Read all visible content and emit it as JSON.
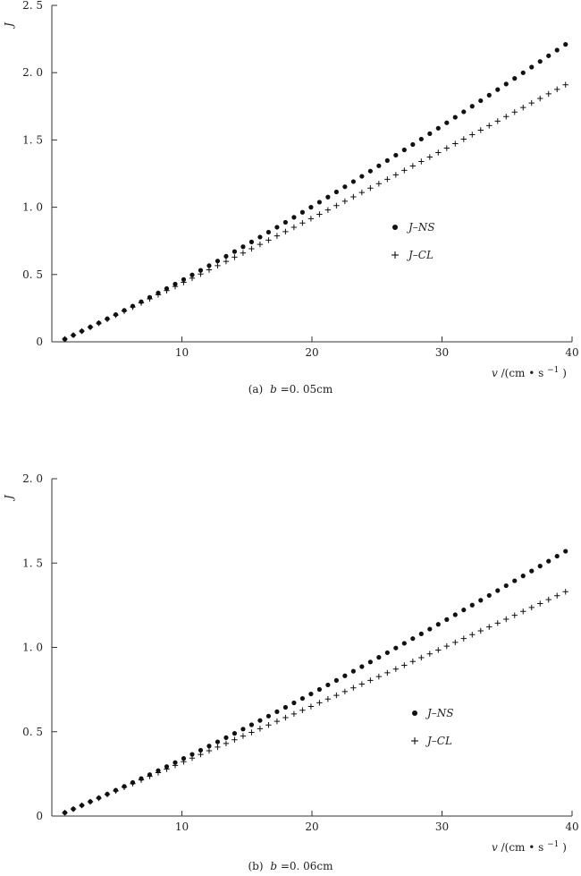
{
  "chart_data": [
    {
      "type": "scatter",
      "caption": {
        "prefix": "(a)",
        "var": "b",
        "rest": "=0. 05cm"
      },
      "xlabel": {
        "var": "v",
        "unit": "/(cm • s",
        "exp": "−1",
        "close": ")"
      },
      "ylabel": "J",
      "xlim": [
        0,
        40
      ],
      "ylim": [
        0,
        2.5
      ],
      "xticks": [
        10,
        20,
        30,
        40
      ],
      "xtick_labels": [
        "10",
        "20",
        "30",
        "40"
      ],
      "yticks": [
        0,
        0.5,
        1.0,
        1.5,
        2.0,
        2.5
      ],
      "ytick_labels": [
        "0",
        "0. 5",
        "1. 0",
        "1. 5",
        "2. 0",
        "2. 5"
      ],
      "legend_position": "right-middle",
      "x_range": [
        1,
        39.5
      ],
      "num_points": 60,
      "series": [
        {
          "name": "J–NS",
          "marker": "dot",
          "start_value": 0.02,
          "end_value": 2.21,
          "slope_start": 0.045,
          "slope_end": 0.065
        },
        {
          "name": "J–CL",
          "marker": "plus",
          "start_value": 0.02,
          "end_value": 1.91,
          "slope_start": 0.045,
          "slope_end": 0.052
        }
      ]
    },
    {
      "type": "scatter",
      "caption": {
        "prefix": "(b)",
        "var": "b",
        "rest": "=0. 06cm"
      },
      "xlabel": {
        "var": "v",
        "unit": "/(cm • s",
        "exp": "−1",
        "close": ")"
      },
      "ylabel": "J",
      "xlim": [
        0,
        40
      ],
      "ylim": [
        0,
        2.0
      ],
      "xticks": [
        10,
        20,
        30,
        40
      ],
      "xtick_labels": [
        "10",
        "20",
        "30",
        "40"
      ],
      "yticks": [
        0,
        0.5,
        1.0,
        1.5,
        2.0
      ],
      "ytick_labels": [
        "0",
        "0. 5",
        "1. 0",
        "1. 5",
        "2. 0"
      ],
      "legend_position": "right-middle",
      "x_range": [
        1,
        39.5
      ],
      "num_points": 60,
      "series": [
        {
          "name": "J–NS",
          "marker": "dot",
          "start_value": 0.02,
          "end_value": 1.57,
          "slope_start": 0.033,
          "slope_end": 0.045
        },
        {
          "name": "J–CL",
          "marker": "plus",
          "start_value": 0.02,
          "end_value": 1.33,
          "slope_start": 0.033,
          "slope_end": 0.036
        }
      ]
    }
  ]
}
